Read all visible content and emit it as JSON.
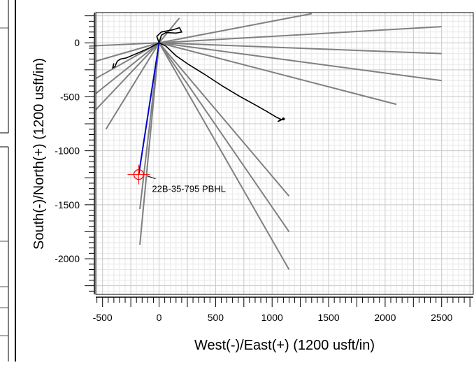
{
  "chart_data": {
    "type": "line",
    "xlabel": "West(-)/East(+) (1200 usft/in)",
    "ylabel": "South(-)/North(+) (1200 usft/in)",
    "xlim": [
      -560,
      2780
    ],
    "ylim": [
      -2330,
      280
    ],
    "x_ticks": [
      -500,
      0,
      500,
      1000,
      1500,
      2000,
      2500
    ],
    "y_ticks": [
      0,
      -500,
      -1000,
      -1500,
      -2000
    ],
    "grid": true,
    "colors": {
      "offset": "#808080",
      "wellbore": "#000000",
      "plan": "#0000cc",
      "target": "#ff0000",
      "grid": "#c8c8c8",
      "minor_grid": "#e8e8e8"
    },
    "series": [
      {
        "role": "offset-wells",
        "style": "gray",
        "segments": [
          [
            [
              0,
              0
            ],
            [
              2500,
              150
            ]
          ],
          [
            [
              0,
              0
            ],
            [
              2500,
              -100
            ]
          ],
          [
            [
              0,
              0
            ],
            [
              2500,
              -350
            ]
          ],
          [
            [
              0,
              0
            ],
            [
              2100,
              -570
            ]
          ],
          [
            [
              0,
              0
            ],
            [
              1350,
              270
            ]
          ],
          [
            [
              0,
              0
            ],
            [
              180,
              230
            ]
          ],
          [
            [
              0,
              0
            ],
            [
              -620,
              -30
            ]
          ],
          [
            [
              0,
              0
            ],
            [
              -560,
              -170
            ]
          ],
          [
            [
              0,
              0
            ],
            [
              -560,
              -330
            ]
          ],
          [
            [
              0,
              0
            ],
            [
              -560,
              -470
            ]
          ],
          [
            [
              0,
              0
            ],
            [
              -560,
              -620
            ]
          ],
          [
            [
              0,
              0
            ],
            [
              -470,
              -800
            ]
          ],
          [
            [
              0,
              0
            ],
            [
              1150,
              -1420
            ]
          ],
          [
            [
              0,
              0
            ],
            [
              1150,
              -1750
            ]
          ],
          [
            [
              0,
              0
            ],
            [
              1150,
              -2100
            ]
          ],
          [
            [
              0,
              0
            ],
            [
              -170,
              -1540
            ]
          ],
          [
            [
              0,
              0
            ],
            [
              -170,
              -1870
            ]
          ]
        ]
      },
      {
        "role": "wellbore-east",
        "style": "black",
        "points": [
          [
            0,
            0
          ],
          [
            60,
            -30
          ],
          [
            150,
            -120
          ],
          [
            260,
            -200
          ],
          [
            400,
            -290
          ],
          [
            560,
            -400
          ],
          [
            720,
            -500
          ],
          [
            860,
            -580
          ],
          [
            960,
            -640
          ],
          [
            1040,
            -690
          ],
          [
            1080,
            -710
          ],
          [
            1050,
            -730
          ],
          [
            1100,
            -705
          ]
        ]
      },
      {
        "role": "wellbore-west",
        "style": "black",
        "points": [
          [
            0,
            0
          ],
          [
            -90,
            -50
          ],
          [
            -200,
            -100
          ],
          [
            -290,
            -140
          ],
          [
            -340,
            -150
          ],
          [
            -370,
            -170
          ],
          [
            -390,
            -220
          ],
          [
            -410,
            -230
          ],
          [
            -400,
            -190
          ]
        ]
      },
      {
        "role": "wellbore-loop",
        "style": "black",
        "points": [
          [
            0,
            0
          ],
          [
            -20,
            60
          ],
          [
            20,
            100
          ],
          [
            120,
            120
          ],
          [
            180,
            140
          ],
          [
            200,
            100
          ],
          [
            150,
            90
          ],
          [
            60,
            95
          ],
          [
            20,
            70
          ],
          [
            0,
            0
          ]
        ]
      },
      {
        "role": "plan",
        "style": "blue",
        "points": [
          [
            0,
            0
          ],
          [
            -180,
            -1220
          ]
        ]
      }
    ],
    "target": {
      "x": -180,
      "y": -1220,
      "label": "22B-35-795 PBHL"
    }
  }
}
